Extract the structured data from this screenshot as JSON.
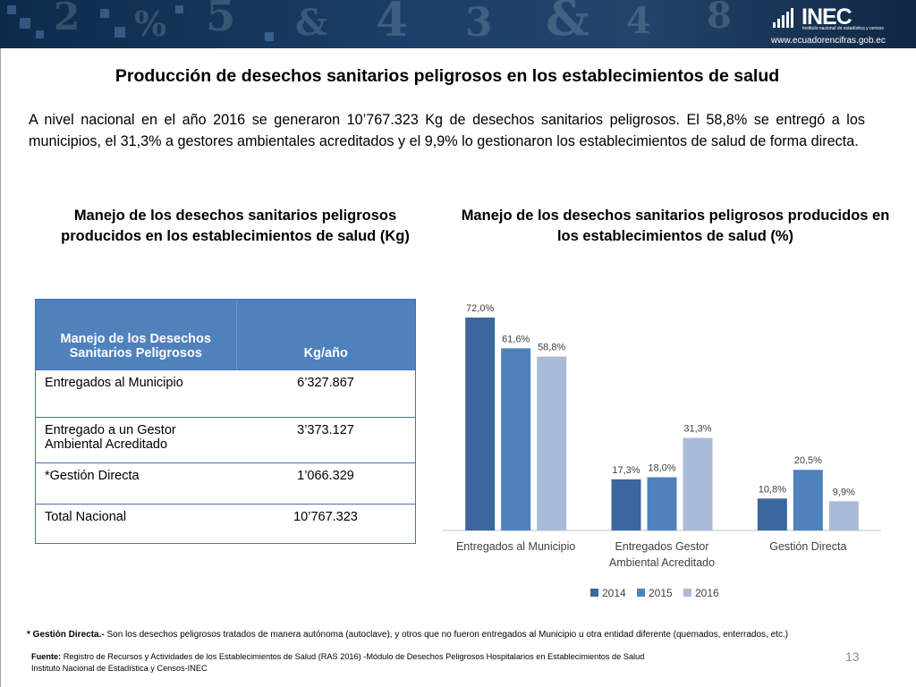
{
  "header": {
    "logo_text": "INEC",
    "logo_subtitle": "Instituto nacional de estadística y censos",
    "logo_url": "www.ecuadorencifras.gob.ec"
  },
  "title": "Producción de desechos sanitarios peligrosos en los establecimientos de salud",
  "intro": "A nivel nacional en el año 2016 se generaron 10’767.323 Kg de desechos sanitarios peligrosos. El 58,8% se entregó a los municipios, el 31,3% a gestores ambientales acreditados  y el 9,9% lo gestionaron los establecimientos de salud de forma directa.",
  "left_chart": {
    "title": "Manejo de los desechos sanitarios peligrosos producidos en los establecimientos de salud (Kg)",
    "table": {
      "headers": [
        "Manejo de los Desechos Sanitarios Peligrosos",
        "Kg/año"
      ],
      "rows": [
        [
          "Entregados al Municipio",
          "6’327.867"
        ],
        [
          "Entregado a un Gestor Ambiental Acreditado",
          "3’373.127"
        ],
        [
          "*Gestión Directa",
          "1’066.329"
        ],
        [
          "Total Nacional",
          "10’767.323"
        ]
      ]
    }
  },
  "right_chart": {
    "title": "Manejo de los desechos sanitarios peligrosos producidos en los establecimientos de salud (%)"
  },
  "chart_data": {
    "type": "bar",
    "title": "Manejo de los desechos sanitarios peligrosos producidos en los establecimientos de salud (%)",
    "categories": [
      "Entregados al Municipio",
      "Entregados Gestor Ambiental Acreditado",
      "Gestión Directa"
    ],
    "series": [
      {
        "name": "2014",
        "values": [
          72.0,
          17.3,
          10.8
        ],
        "labels": [
          "72,0%",
          "17,3%",
          "10,8%"
        ],
        "color": "#3c679e"
      },
      {
        "name": "2015",
        "values": [
          61.6,
          18.0,
          20.5
        ],
        "labels": [
          "61,6%",
          "18,0%",
          "20,5%"
        ],
        "color": "#4f81bd"
      },
      {
        "name": "2016",
        "values": [
          58.8,
          31.3,
          9.9
        ],
        "labels": [
          "58,8%",
          "31,3%",
          "9,9%"
        ],
        "color": "#a9bbd9"
      }
    ],
    "ylim": [
      0,
      72
    ],
    "grid": false,
    "legend": "bottom"
  },
  "footnote": {
    "label": "* Gestión Directa.-",
    "text": " Son los desechos peligrosos tratados de manera autónoma (autoclave), y otros  que no fueron entregados al Municipio u otra entidad diferente (quemados, enterrados, etc.)"
  },
  "source": {
    "label": "Fuente:",
    "line1": " Registro de Recursos y Actividades de los Establecimientos de Salud (RAS 2016) -Módulo de Desechos Peligrosos Hospitalarios en Establecimientos de Salud",
    "line2": "Instituto Nacional de Estadística y Censos-INEC"
  },
  "page_number": "13"
}
